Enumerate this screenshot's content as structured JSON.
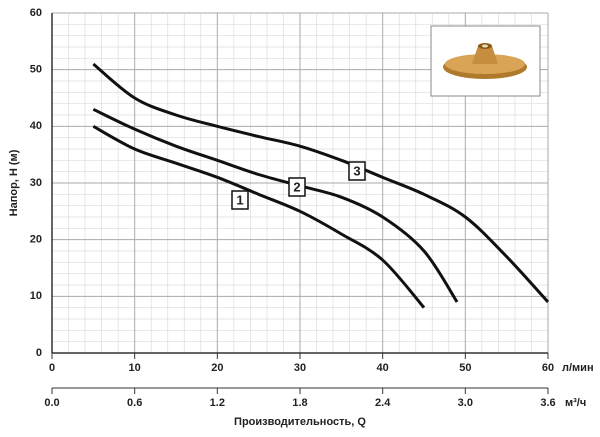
{
  "chart_data": {
    "type": "line",
    "ylabel": "Напор, H (м)",
    "xlabel": "Производительность, Q",
    "xunit": "л/мин",
    "x2unit": "м³/ч",
    "xlim": [
      0,
      60
    ],
    "xticks": [
      0,
      10,
      20,
      30,
      40,
      50,
      60
    ],
    "x2lim": [
      0,
      3.6
    ],
    "x2ticks": [
      {
        "value": 0,
        "label": "0.0"
      },
      0.6,
      1.2,
      1.8,
      2.4,
      {
        "value": 3,
        "label": "3.0"
      },
      3.6
    ],
    "ylim": [
      0,
      60
    ],
    "yticks": [
      0,
      10,
      20,
      30,
      40,
      50,
      60
    ],
    "grid": true,
    "series": [
      {
        "name": "1",
        "color": "#111111",
        "x": [
          5,
          10,
          15,
          20,
          25,
          30,
          35,
          40,
          45
        ],
        "values": [
          40,
          36,
          33.5,
          31,
          28,
          25,
          21,
          16.4,
          8
        ]
      },
      {
        "name": "2",
        "color": "#111111",
        "x": [
          5,
          10,
          15,
          20,
          25,
          30,
          35,
          40,
          45,
          49
        ],
        "values": [
          43,
          39.5,
          36.5,
          34,
          31.5,
          29.5,
          27.5,
          24,
          18,
          9
        ]
      },
      {
        "name": "3",
        "color": "#111111",
        "x": [
          5,
          10,
          15,
          20,
          25,
          30,
          35,
          40,
          45,
          50,
          55,
          60
        ],
        "values": [
          51,
          45,
          42,
          40,
          38.2,
          36.5,
          34,
          31,
          28,
          24,
          17,
          9
        ]
      }
    ]
  }
}
